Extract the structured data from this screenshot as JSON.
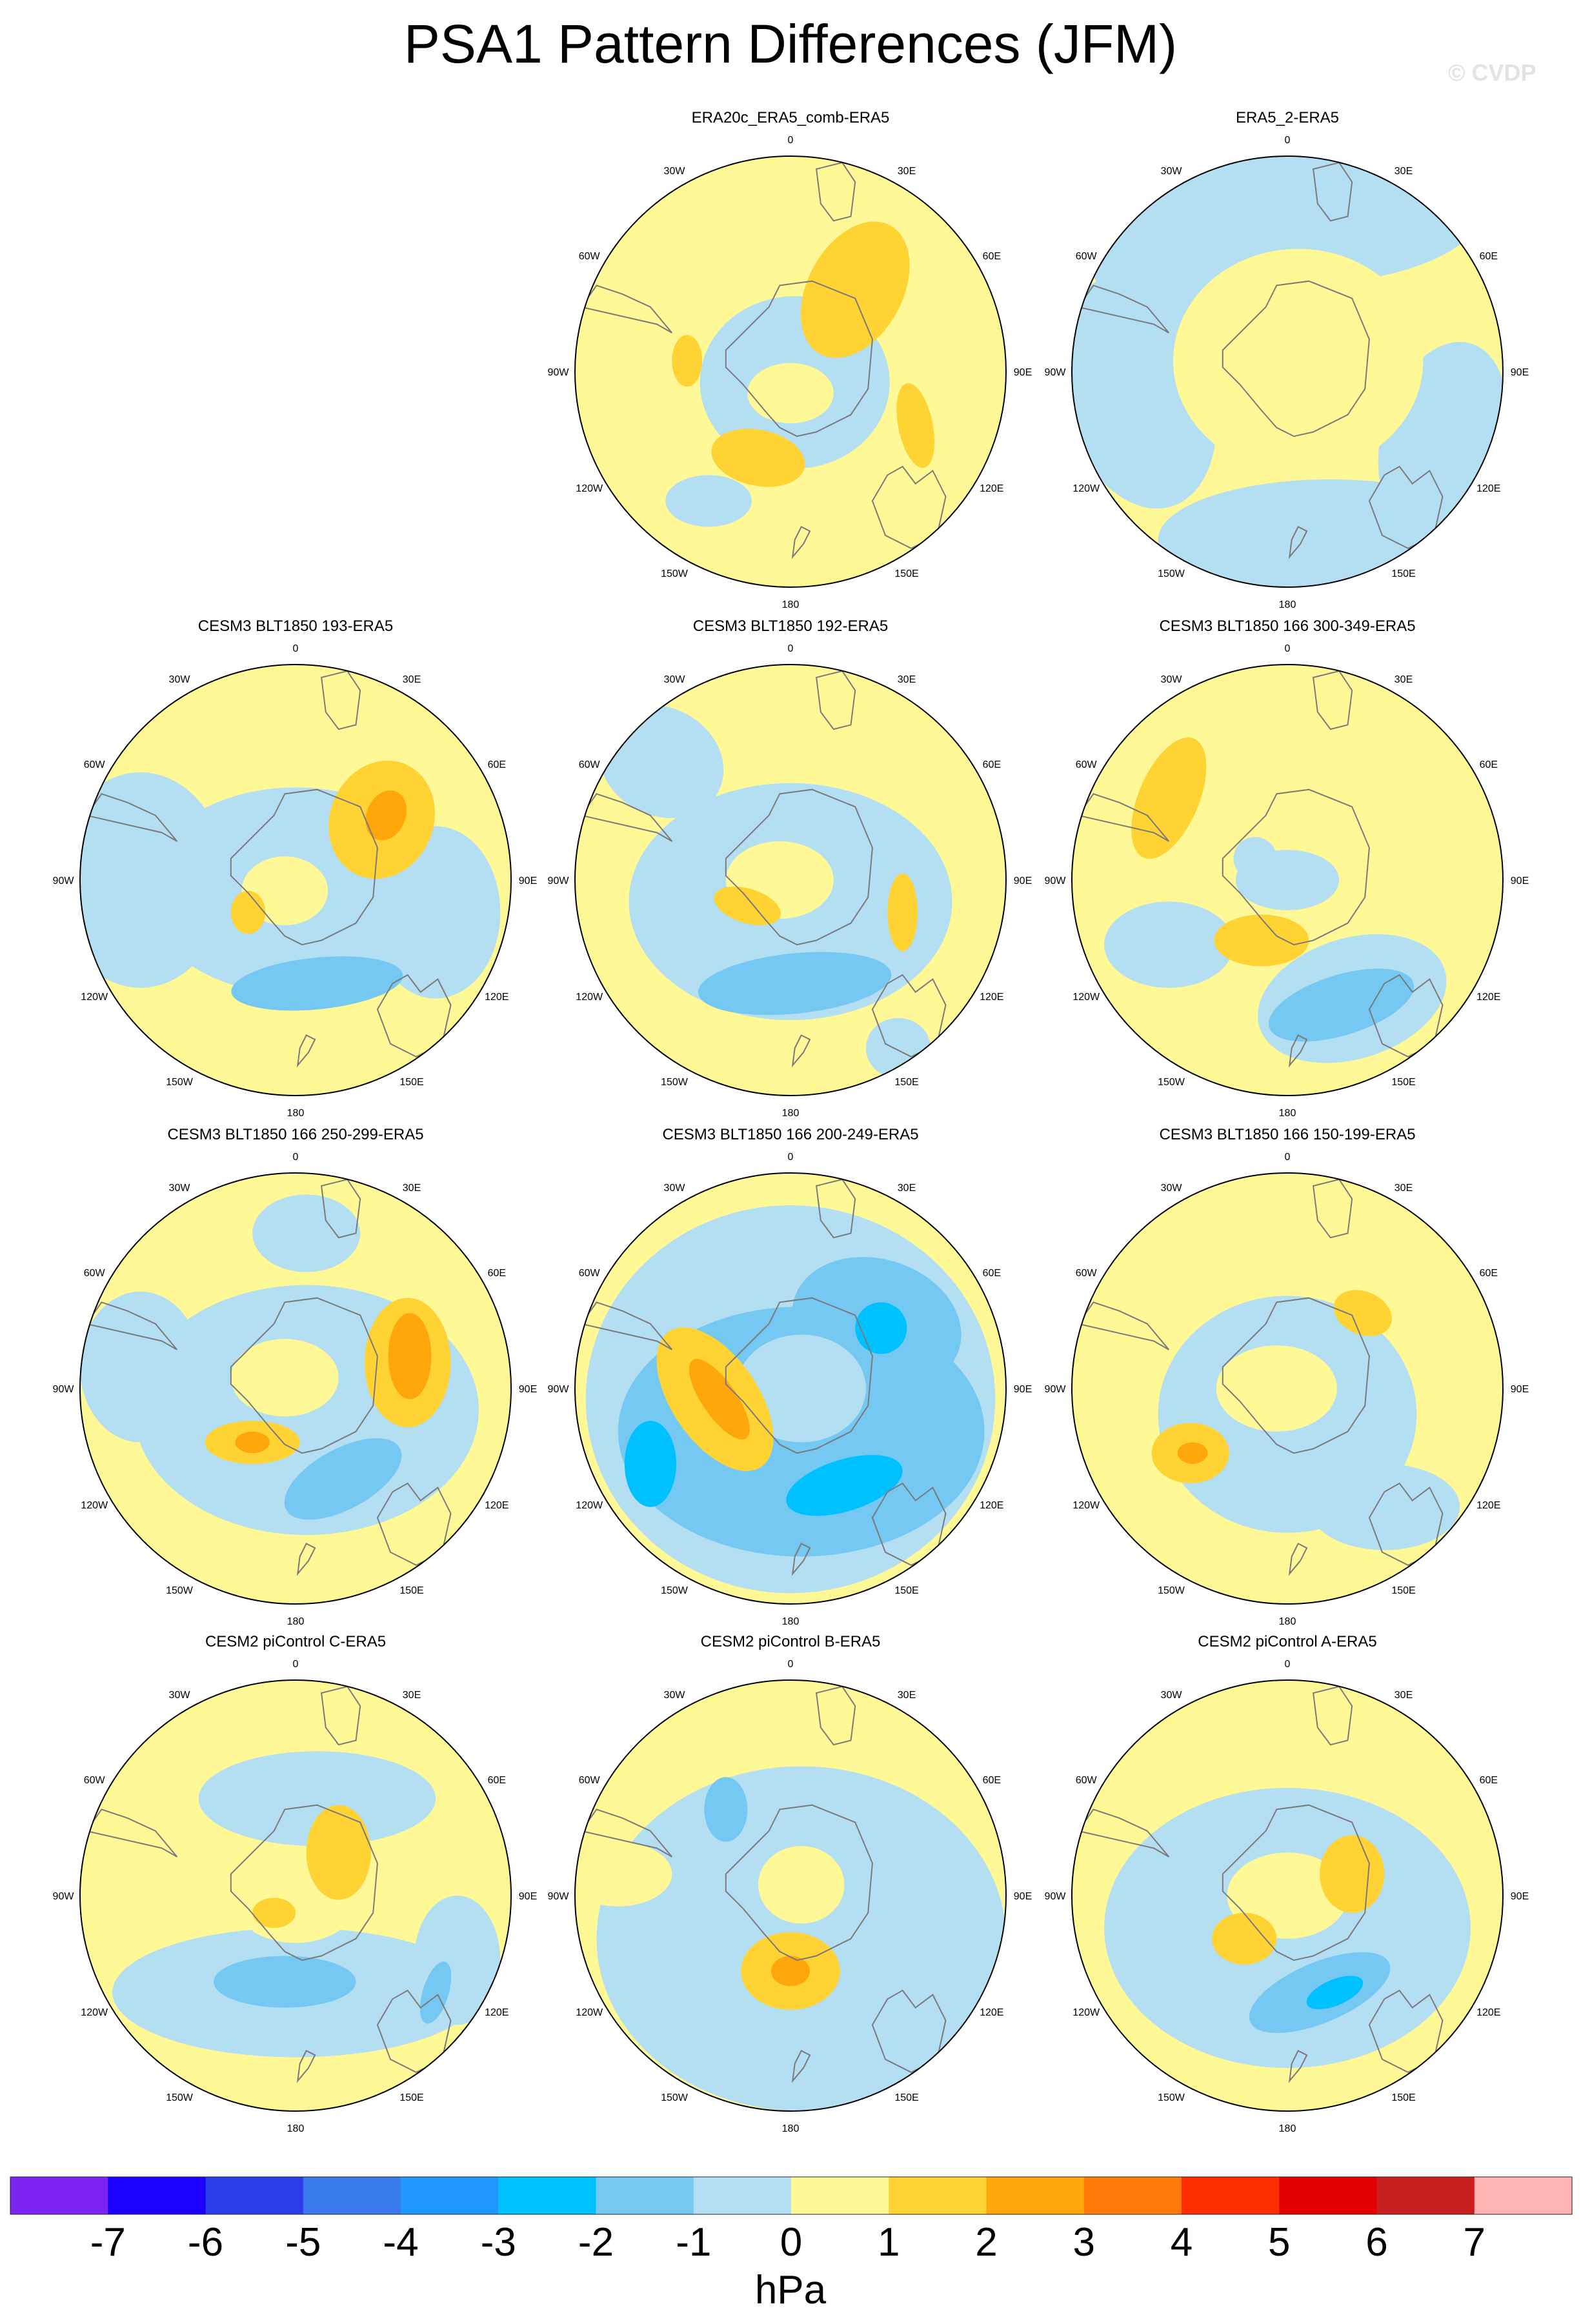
{
  "title": "PSA1 Pattern Differences (JFM)",
  "watermark": "© CVDP",
  "colorbar": {
    "unit": "hPa",
    "ticks": [
      "-7",
      "-6",
      "-5",
      "-4",
      "-3",
      "-2",
      "-1",
      "0",
      "1",
      "2",
      "3",
      "4",
      "5",
      "6",
      "7"
    ],
    "colors": [
      "#7e24f2",
      "#1b00ff",
      "#2b3de6",
      "#3979ed",
      "#2096ff",
      "#00c1ff",
      "#74c8f2",
      "#b4def2",
      "#fff896",
      "#fed333",
      "#ffa70a",
      "#ff7a0a",
      "#ff2e00",
      "#e40000",
      "#c81e1e",
      "#ffb3b3"
    ]
  },
  "map_labels": {
    "lon_top": "0",
    "lon_bottom": "180",
    "lon_30w": "30W",
    "lon_30e": "30E",
    "lon_60w": "60W",
    "lon_60e": "60E",
    "lon_90w": "90W",
    "lon_90e": "90E",
    "lon_120w": "120W",
    "lon_120e": "120E",
    "lon_150w": "150W",
    "lon_150e": "150E"
  },
  "chart_data": [
    {
      "type": "contour-map",
      "title": "ERA20c_ERA5_comb-ERA5",
      "variable": "PSA1 pattern difference",
      "units": "hPa",
      "range": [
        -2,
        2
      ]
    },
    {
      "type": "contour-map",
      "title": "ERA5_2-ERA5",
      "variable": "PSA1 pattern difference",
      "units": "hPa",
      "range": [
        -1,
        1
      ]
    },
    {
      "type": "contour-map",
      "title": "CESM3 BLT1850 193-ERA5",
      "variable": "PSA1 pattern difference",
      "units": "hPa",
      "range": [
        -2,
        3
      ]
    },
    {
      "type": "contour-map",
      "title": "CESM3 BLT1850 192-ERA5",
      "variable": "PSA1 pattern difference",
      "units": "hPa",
      "range": [
        -2,
        2
      ]
    },
    {
      "type": "contour-map",
      "title": "CESM3 BLT1850 166 300-349-ERA5",
      "variable": "PSA1 pattern difference",
      "units": "hPa",
      "range": [
        -2,
        2
      ]
    },
    {
      "type": "contour-map",
      "title": "CESM3 BLT1850 166 250-299-ERA5",
      "variable": "PSA1 pattern difference",
      "units": "hPa",
      "range": [
        -2,
        3
      ]
    },
    {
      "type": "contour-map",
      "title": "CESM3 BLT1850 166 200-249-ERA5",
      "variable": "PSA1 pattern difference",
      "units": "hPa",
      "range": [
        -3,
        3
      ]
    },
    {
      "type": "contour-map",
      "title": "CESM3 BLT1850 166 150-199-ERA5",
      "variable": "PSA1 pattern difference",
      "units": "hPa",
      "range": [
        -1,
        3
      ]
    },
    {
      "type": "contour-map",
      "title": "CESM2 piControl C-ERA5",
      "variable": "PSA1 pattern difference",
      "units": "hPa",
      "range": [
        -2,
        2
      ]
    },
    {
      "type": "contour-map",
      "title": "CESM2 piControl B-ERA5",
      "variable": "PSA1 pattern difference",
      "units": "hPa",
      "range": [
        -2,
        3
      ]
    },
    {
      "type": "contour-map",
      "title": "CESM2 piControl A-ERA5",
      "variable": "PSA1 pattern difference",
      "units": "hPa",
      "range": [
        -3,
        2
      ]
    }
  ]
}
